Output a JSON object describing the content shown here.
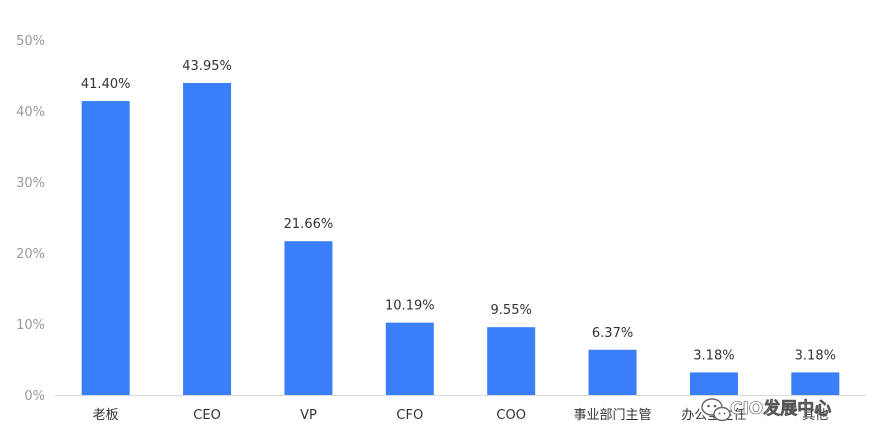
{
  "chart_data": {
    "type": "bar",
    "categories": [
      "老板",
      "CEO",
      "VP",
      "CFO",
      "COO",
      "事业部门主管",
      "办公室主任",
      "其他"
    ],
    "values": [
      41.4,
      43.95,
      21.66,
      10.19,
      9.55,
      6.37,
      3.18,
      3.18
    ],
    "data_labels": [
      "41.40%",
      "43.95%",
      "21.66%",
      "10.19%",
      "9.55%",
      "6.37%",
      "3.18%",
      "3.18%"
    ],
    "y_ticks": [
      "0%",
      "10%",
      "20%",
      "30%",
      "40%",
      "50%"
    ],
    "ylim": [
      0,
      50
    ],
    "grid": false,
    "bar_color": "#3a7ef8",
    "title": "",
    "xlabel": "",
    "ylabel": ""
  },
  "watermark": {
    "text": "CIO发展中心",
    "icon": "wechat-icon"
  }
}
